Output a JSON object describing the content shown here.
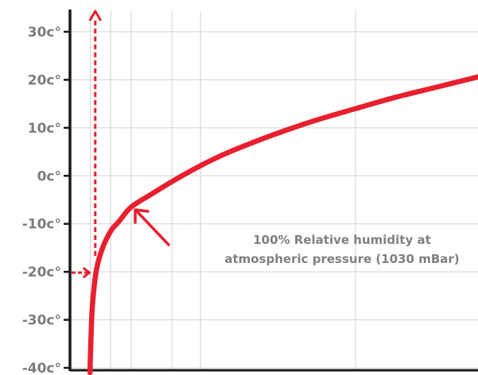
{
  "chart_data": {
    "type": "line",
    "title": "",
    "xlabel": "",
    "ylabel": "",
    "grid": true,
    "legend": "none",
    "ylim": [
      -42,
      34
    ],
    "xlim": [
      0,
      100
    ],
    "y_ticks": [
      {
        "value": 30,
        "label": "30c°"
      },
      {
        "value": 20,
        "label": "20c°"
      },
      {
        "value": 10,
        "label": "10c°"
      },
      {
        "value": 0,
        "label": "0c°"
      },
      {
        "value": -10,
        "label": "-10c°"
      },
      {
        "value": -20,
        "label": "-20c°"
      },
      {
        "value": -30,
        "label": "-30c°"
      },
      {
        "value": -40,
        "label": "-40c°"
      }
    ],
    "x_gridlines": [
      5,
      10,
      15,
      25,
      32,
      70
    ],
    "series": [
      {
        "name": "",
        "color": "#e8202e",
        "x": [
          4.9,
          5.1,
          5.5,
          6.5,
          8,
          10,
          12,
          15,
          20,
          25,
          30,
          35,
          40,
          50,
          60,
          70,
          80,
          90,
          100
        ],
        "y": [
          -41,
          -35,
          -27,
          -19.5,
          -15,
          -11.5,
          -9.5,
          -6.5,
          -3.8,
          -1.2,
          1.2,
          3.4,
          5.3,
          8.6,
          11.5,
          14,
          16.4,
          18.5,
          20.6
        ]
      }
    ],
    "reference_lines": {
      "color": "#e8202e",
      "vertical_x": 6,
      "horizontal_y": -20
    },
    "annotation": {
      "line1": "100% Relative humidity at",
      "line2": "atmospheric pressure (1030 mBar)",
      "color": "#808080",
      "arrow_color": "#e8202e"
    }
  }
}
